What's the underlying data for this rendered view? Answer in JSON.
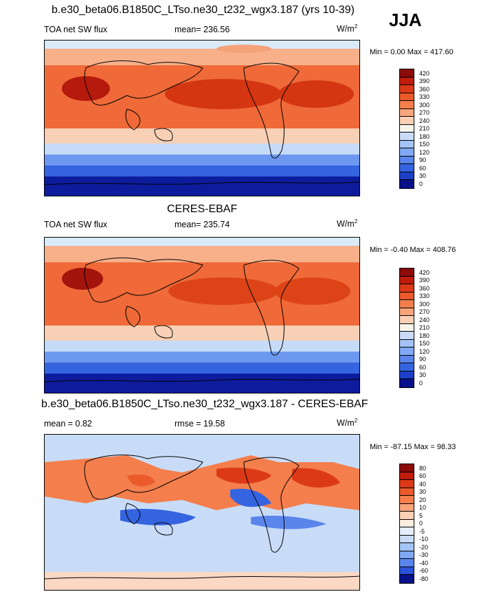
{
  "season": "JJA",
  "units_prefix": "W/m",
  "units_sup": "2",
  "panels": [
    {
      "title": "b.e30_beta06.B1850C_LTso.ne30_t232_wgx3.187 (yrs 10-39)",
      "left_label": "TOA net SW flux",
      "mid_label": "mean= 236.56",
      "range_label": "Min =   0.00 Max = 417.60",
      "levels": [
        "420",
        "390",
        "360",
        "330",
        "300",
        "270",
        "240",
        "210",
        "180",
        "150",
        "120",
        "90",
        "60",
        "30",
        "0"
      ],
      "colors": [
        "#8b0a0a",
        "#c01c0c",
        "#dc3a16",
        "#ea5a2a",
        "#f47e4c",
        "#f8a57c",
        "#fbd0b4",
        "#f8f4ec",
        "#c8dcf8",
        "#a4c4f8",
        "#80a8f4",
        "#5a86ec",
        "#3564e0",
        "#1c40c8",
        "#08108a"
      ]
    },
    {
      "title": "CERES-EBAF",
      "left_label": "TOA net SW flux",
      "mid_label": "mean= 235.74",
      "range_label": "Min =  -0.40 Max = 408.76",
      "levels": [
        "420",
        "390",
        "360",
        "330",
        "300",
        "270",
        "240",
        "210",
        "180",
        "150",
        "120",
        "90",
        "60",
        "30",
        "0"
      ],
      "colors": [
        "#8b0a0a",
        "#c01c0c",
        "#dc3a16",
        "#ea5a2a",
        "#f47e4c",
        "#f8a57c",
        "#fbd0b4",
        "#f8f4ec",
        "#c8dcf8",
        "#a4c4f8",
        "#80a8f4",
        "#5a86ec",
        "#3564e0",
        "#1c40c8",
        "#08108a"
      ]
    },
    {
      "title": "b.e30_beta06.B1850C_LTso.ne30_t232_wgx3.187 - CERES-EBAF",
      "left_label": "mean =   0.82",
      "mid_label": "rmse =  19.58",
      "range_label": "Min = -87.15 Max =  98.33",
      "levels": [
        "80",
        "60",
        "40",
        "30",
        "20",
        "10",
        "5",
        "0",
        "-5",
        "-10",
        "-20",
        "-30",
        "-40",
        "-60",
        "-80"
      ],
      "colors": [
        "#8b0a0a",
        "#c01c0c",
        "#dc3a16",
        "#ea5a2a",
        "#f47e4c",
        "#f8a57c",
        "#fbd0b4",
        "#fcece0",
        "#e4eefc",
        "#c8dcf8",
        "#a4c4f8",
        "#80a8f4",
        "#5a86ec",
        "#2a52d8",
        "#08108a"
      ]
    }
  ]
}
